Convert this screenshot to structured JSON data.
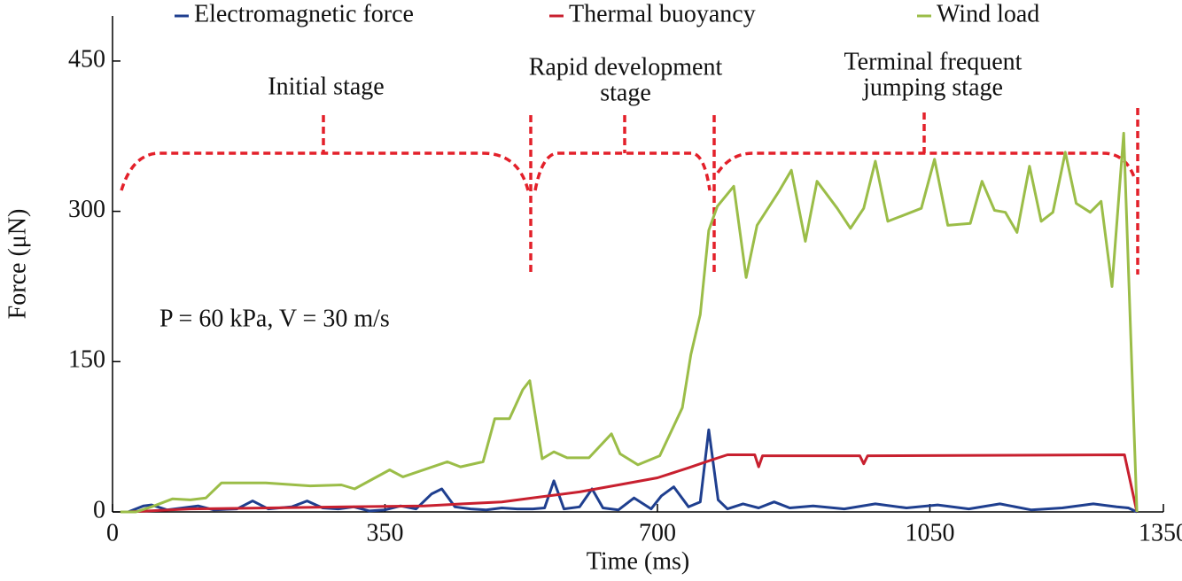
{
  "chart_data": {
    "type": "line",
    "xlabel": "Time (ms)",
    "ylabel": "Force (μN)",
    "xlim": [
      0,
      1350
    ],
    "ylim": [
      0,
      495
    ],
    "xticks": [
      0,
      350,
      700,
      1050,
      1350
    ],
    "yticks": [
      0,
      150,
      300,
      450
    ],
    "legend": "top",
    "annotations": [
      {
        "lines": [
          "Initial stage"
        ]
      },
      {
        "lines": [
          "Rapid development",
          "stage"
        ]
      },
      {
        "lines": [
          "Terminal frequent",
          "jumping stage"
        ]
      },
      {
        "lines": [
          "P = 60 kPa, V = 30 m/s"
        ]
      }
    ],
    "series": [
      {
        "name": "Electromagnetic force",
        "color": "#1f3f8f",
        "x": [
          20,
          40,
          50,
          70,
          90,
          110,
          130,
          160,
          180,
          200,
          230,
          250,
          270,
          290,
          310,
          330,
          350,
          370,
          390,
          410,
          423,
          440,
          460,
          480,
          500,
          520,
          540,
          555,
          567,
          580,
          600,
          616,
          630,
          650,
          670,
          692,
          705,
          721,
          740,
          755,
          766,
          778,
          790,
          810,
          830,
          850,
          870,
          900,
          940,
          980,
          1020,
          1060,
          1100,
          1140,
          1180,
          1220,
          1260,
          1290,
          1305,
          1316
        ],
        "values": [
          0,
          6,
          7,
          2,
          4,
          6,
          2,
          3,
          11,
          3,
          5,
          11,
          4,
          3,
          5,
          1,
          2,
          6,
          3,
          18,
          23,
          5,
          3,
          2,
          4,
          3,
          3,
          4,
          31,
          3,
          5,
          23,
          4,
          2,
          14,
          3,
          16,
          25,
          5,
          10,
          82,
          12,
          3,
          8,
          4,
          10,
          4,
          6,
          3,
          8,
          4,
          7,
          3,
          8,
          2,
          4,
          8,
          5,
          4,
          0
        ]
      },
      {
        "name": "Thermal buoyancy",
        "color": "#c8202f",
        "x": [
          20,
          100,
          200,
          300,
          400,
          450,
          500,
          550,
          600,
          650,
          700,
          740,
          770,
          790,
          825,
          830,
          835,
          960,
          965,
          970,
          1300,
          1316
        ],
        "values": [
          0,
          3,
          4,
          5,
          6,
          8,
          10,
          15,
          20,
          27,
          34,
          44,
          52,
          57,
          57,
          45,
          56,
          56,
          48,
          56,
          57,
          0
        ]
      },
      {
        "name": "Wind load",
        "color": "#9bbd48",
        "x": [
          10,
          30,
          50,
          77,
          100,
          120,
          140,
          197,
          254,
          294,
          311,
          356,
          373,
          430,
          447,
          476,
          491,
          510,
          527,
          536,
          552,
          567,
          584,
          612,
          641,
          652,
          675,
          703,
          732,
          743,
          755,
          766,
          777,
          798,
          814,
          828,
          857,
          872,
          890,
          905,
          931,
          948,
          965,
          980,
          996,
          1039,
          1056,
          1073,
          1102,
          1117,
          1133,
          1147,
          1162,
          1178,
          1193,
          1208,
          1224,
          1238,
          1256,
          1270,
          1284,
          1299,
          1316
        ],
        "values": [
          0,
          0,
          5,
          13,
          12,
          14,
          29,
          29,
          26,
          27,
          23,
          42,
          35,
          50,
          45,
          50,
          93,
          93,
          122,
          131,
          53,
          60,
          54,
          54,
          78,
          58,
          47,
          56,
          104,
          157,
          197,
          281,
          305,
          325,
          234,
          286,
          321,
          341,
          270,
          330,
          303,
          283,
          303,
          350,
          290,
          303,
          352,
          286,
          288,
          330,
          301,
          299,
          279,
          345,
          290,
          299,
          359,
          308,
          299,
          310,
          225,
          378,
          0
        ]
      }
    ]
  }
}
